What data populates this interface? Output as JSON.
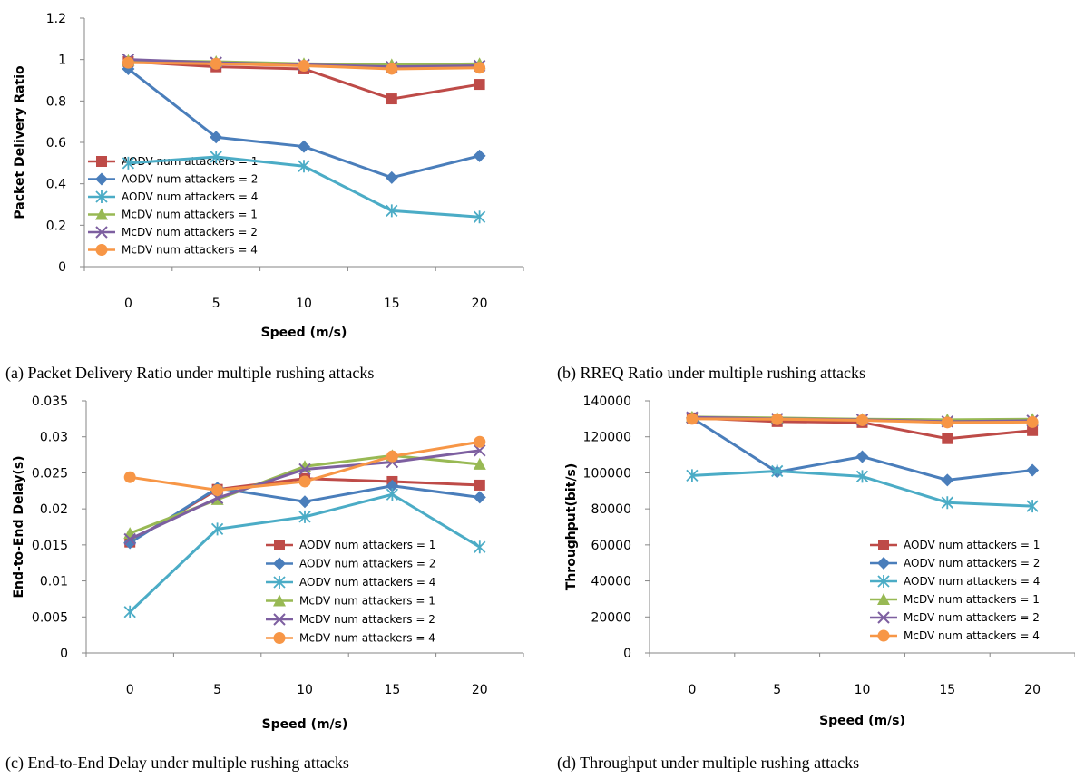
{
  "series_colors": [
    "#be4b48",
    "#4a7ebb",
    "#4bacc6",
    "#98b954",
    "#7d5fa0",
    "#f79646"
  ],
  "series_markers": [
    "square",
    "diamond",
    "asterisk",
    "triangle",
    "x",
    "circle"
  ],
  "captions": {
    "a": "(a) Packet Delivery Ratio under multiple rushing attacks",
    "b": "(b) RREQ Ratio under multiple rushing attacks",
    "c": "(c) End-to-End Delay under multiple rushing attacks",
    "d": "(d) Throughput under multiple rushing attacks"
  },
  "chart_data": [
    {
      "id": "a",
      "type": "line",
      "ylabel": "Packet Delivery Ratio",
      "xlabel": "Speed (m/s)",
      "categories": [
        "0",
        "5",
        "10",
        "15",
        "20"
      ],
      "ylim": [
        0,
        1.2
      ],
      "yticks": [
        "0",
        "0.2",
        "0.4",
        "0.6",
        "0.8",
        "1",
        "1.2"
      ],
      "legend_position": "lower-left",
      "series": [
        {
          "name": "AODV num attackers = 1",
          "values": [
            0.99,
            0.965,
            0.955,
            0.81,
            0.88
          ]
        },
        {
          "name": "AODV num attackers = 2",
          "values": [
            0.955,
            0.625,
            0.58,
            0.43,
            0.535
          ]
        },
        {
          "name": "AODV num attackers = 4",
          "values": [
            0.5,
            0.53,
            0.485,
            0.27,
            0.24
          ]
        },
        {
          "name": "McDV num attackers = 1",
          "values": [
            0.995,
            0.99,
            0.98,
            0.975,
            0.98
          ]
        },
        {
          "name": "McDV num attackers = 2",
          "values": [
            1.0,
            0.985,
            0.975,
            0.965,
            0.97
          ]
        },
        {
          "name": "McDV num attackers = 4",
          "values": [
            0.985,
            0.98,
            0.97,
            0.955,
            0.96
          ]
        }
      ]
    },
    {
      "id": "c",
      "type": "line",
      "ylabel": "End-to-End Delay(s)",
      "xlabel": "Speed (m/s)",
      "categories": [
        "0",
        "5",
        "10",
        "15",
        "20"
      ],
      "ylim": [
        0,
        0.035
      ],
      "yticks": [
        "0",
        "0.005",
        "0.01",
        "0.015",
        "0.02",
        "0.025",
        "0.03",
        "0.035"
      ],
      "legend_position": "lower-right",
      "series": [
        {
          "name": "AODV num attackers = 1",
          "values": [
            0.0154,
            0.0227,
            0.0242,
            0.0238,
            0.0233
          ]
        },
        {
          "name": "AODV num attackers = 2",
          "values": [
            0.0153,
            0.0229,
            0.021,
            0.0232,
            0.0216
          ]
        },
        {
          "name": "AODV num attackers = 4",
          "values": [
            0.0057,
            0.0172,
            0.0189,
            0.022,
            0.0147
          ]
        },
        {
          "name": "McDV num attackers = 1",
          "values": [
            0.0166,
            0.0213,
            0.0259,
            0.0274,
            0.0262
          ]
        },
        {
          "name": "McDV num attackers = 2",
          "values": [
            0.0158,
            0.0215,
            0.0255,
            0.0265,
            0.0281
          ]
        },
        {
          "name": "McDV num attackers = 4",
          "values": [
            0.0244,
            0.0226,
            0.0238,
            0.0273,
            0.0293
          ]
        }
      ]
    },
    {
      "id": "d",
      "type": "line",
      "ylabel": "Throughput(bit/s)",
      "xlabel": "Speed (m/s)",
      "categories": [
        "0",
        "5",
        "10",
        "15",
        "20"
      ],
      "ylim": [
        0,
        140000
      ],
      "yticks": [
        "0",
        "20000",
        "40000",
        "60000",
        "80000",
        "100000",
        "120000",
        "140000"
      ],
      "legend_position": "lower-right",
      "series": [
        {
          "name": "AODV num attackers = 1",
          "values": [
            130500,
            128500,
            128000,
            119000,
            123500
          ]
        },
        {
          "name": "AODV num attackers = 2",
          "values": [
            130500,
            100500,
            109000,
            96000,
            101500
          ]
        },
        {
          "name": "AODV num attackers = 4",
          "values": [
            98500,
            101000,
            98000,
            83500,
            81500
          ]
        },
        {
          "name": "McDV num attackers = 1",
          "values": [
            131000,
            130500,
            129800,
            129500,
            129800
          ]
        },
        {
          "name": "McDV num attackers = 2",
          "values": [
            130800,
            130000,
            129500,
            128500,
            129000
          ]
        },
        {
          "name": "McDV num attackers = 4",
          "values": [
            130000,
            129800,
            129200,
            128000,
            128200
          ]
        }
      ]
    }
  ]
}
